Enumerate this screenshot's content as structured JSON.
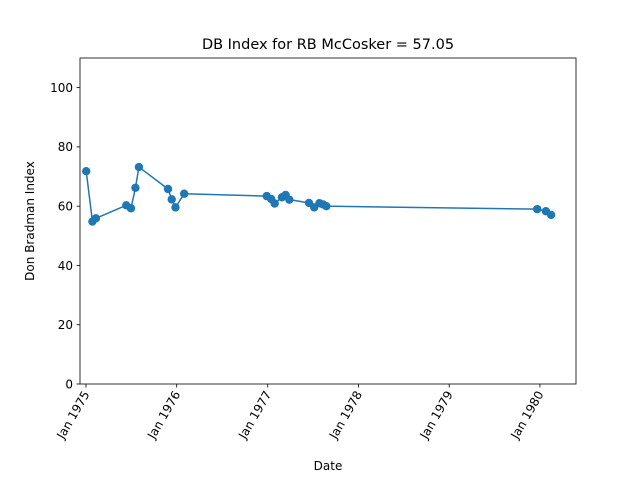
{
  "chart_data": {
    "type": "line",
    "title": "DB Index for RB McCosker = 57.05",
    "xlabel": "Date",
    "ylabel": "Don Bradman Index",
    "ylim": [
      0,
      110
    ],
    "xlim": [
      "1974-12-08",
      "1980-05-25"
    ],
    "yticks": [
      0,
      20,
      40,
      60,
      80,
      100
    ],
    "xticks": [
      {
        "date": "1975-01-01",
        "label": "Jan 1975"
      },
      {
        "date": "1976-01-01",
        "label": "Jan 1976"
      },
      {
        "date": "1977-01-01",
        "label": "Jan 1977"
      },
      {
        "date": "1978-01-01",
        "label": "Jan 1978"
      },
      {
        "date": "1979-01-01",
        "label": "Jan 1979"
      },
      {
        "date": "1980-01-01",
        "label": "Jan 1980"
      }
    ],
    "grid": false,
    "legend": false,
    "color": "#1f77b4",
    "series": [
      {
        "x": [
          "1975-01-02",
          "1975-01-27",
          "1975-02-10",
          "1975-06-12",
          "1975-07-01",
          "1975-07-19",
          "1975-08-02",
          "1975-11-27",
          "1975-12-12",
          "1975-12-27",
          "1976-01-31",
          "1976-12-28",
          "1977-01-15",
          "1977-01-29",
          "1977-02-27",
          "1977-03-14",
          "1977-03-29",
          "1977-06-16",
          "1977-07-07",
          "1977-07-28",
          "1977-08-11",
          "1977-08-25",
          "1979-12-21",
          "1980-01-25",
          "1980-02-15"
        ],
        "y": [
          71.8,
          54.8,
          55.9,
          60.3,
          59.3,
          66.2,
          73.2,
          65.8,
          62.3,
          59.6,
          64.2,
          63.4,
          62.4,
          60.9,
          63.0,
          63.8,
          62.2,
          61.1,
          59.6,
          61.0,
          60.6,
          60.0,
          59.0,
          58.3,
          57.05
        ]
      }
    ]
  }
}
